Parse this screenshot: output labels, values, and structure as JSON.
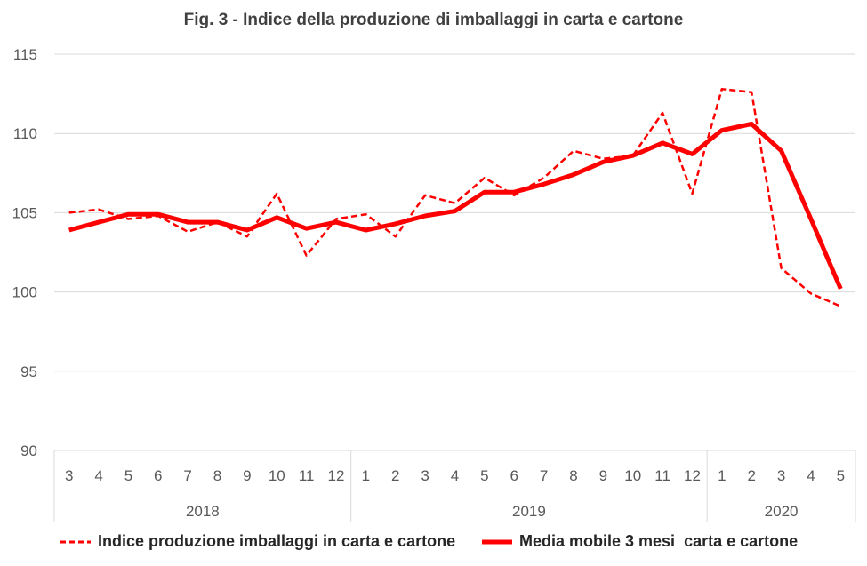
{
  "chart_data": {
    "type": "line",
    "title": "Fig. 3 - Indice della produzione di imballaggi in carta e cartone",
    "xlabel": "",
    "ylabel": "",
    "ylim": [
      90,
      115
    ],
    "yticks": [
      "90",
      "95",
      "100",
      "105",
      "110",
      "115"
    ],
    "grid": true,
    "legend_position": "bottom",
    "years": [
      {
        "label": "2018",
        "months": [
          "3",
          "4",
          "5",
          "6",
          "7",
          "8",
          "9",
          "10",
          "11",
          "12"
        ]
      },
      {
        "label": "2019",
        "months": [
          "1",
          "2",
          "3",
          "4",
          "5",
          "6",
          "7",
          "8",
          "9",
          "10",
          "11",
          "12"
        ]
      },
      {
        "label": "2020",
        "months": [
          "1",
          "2",
          "3",
          "4",
          "5"
        ]
      }
    ],
    "series": [
      {
        "name": "Indice produzione imballaggi in carta e cartone",
        "style": "dashed",
        "color": "#ff0000",
        "values": [
          105.0,
          105.2,
          104.6,
          104.8,
          103.8,
          104.4,
          103.5,
          106.2,
          102.3,
          104.6,
          104.9,
          103.5,
          106.1,
          105.6,
          107.2,
          106.1,
          107.2,
          108.9,
          108.4,
          108.6,
          111.3,
          106.2,
          112.8,
          112.6,
          101.5,
          99.9,
          99.1
        ]
      },
      {
        "name": "Media mobile 3 mesi  carta e cartone",
        "style": "solid",
        "color": "#ff0000",
        "values": [
          103.9,
          104.4,
          104.9,
          104.9,
          104.4,
          104.4,
          103.9,
          104.7,
          104.0,
          104.4,
          103.9,
          104.3,
          104.8,
          105.1,
          106.3,
          106.3,
          106.8,
          107.4,
          108.2,
          108.6,
          109.4,
          108.7,
          110.2,
          110.6,
          108.9,
          104.6,
          100.2
        ]
      }
    ]
  }
}
